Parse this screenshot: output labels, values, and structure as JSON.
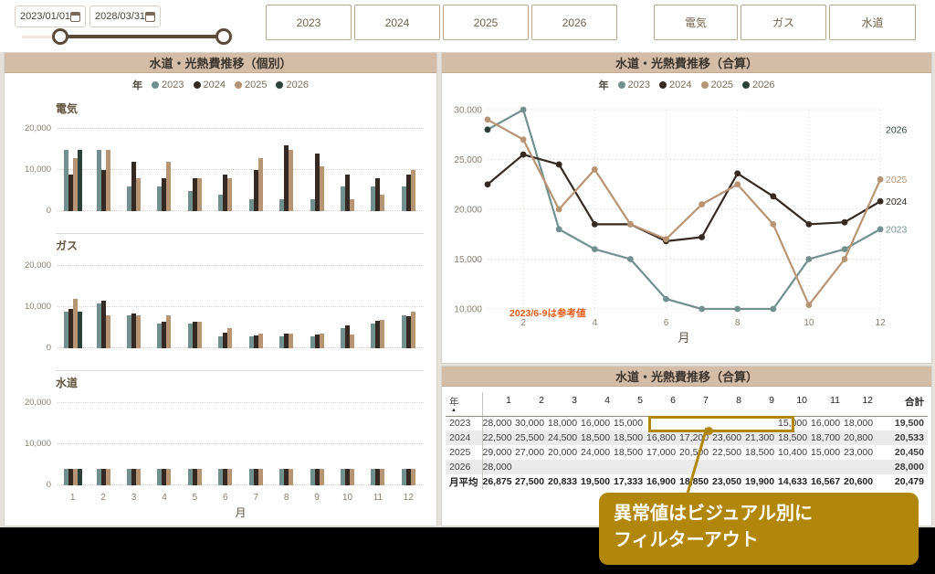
{
  "toolbar": {
    "date_from": "2023/01/01",
    "date_to": "2028/03/31",
    "year_buttons": [
      "2023",
      "2024",
      "2025",
      "2026"
    ],
    "utility_buttons": [
      "電気",
      "ガス",
      "水道"
    ]
  },
  "colors": {
    "y2023": "#72908e",
    "y2024": "#342a23",
    "y2025": "#b79473",
    "y2026": "#2e4138",
    "accent_gold": "#b1870b",
    "annotation_orange": "#e55c17",
    "header_tan": "#d5bca6"
  },
  "legend": {
    "label": "年",
    "items": [
      {
        "year": "2023",
        "color": "#72908e"
      },
      {
        "year": "2024",
        "color": "#342a23"
      },
      {
        "year": "2025",
        "color": "#b79473"
      },
      {
        "year": "2026",
        "color": "#2e4138"
      }
    ]
  },
  "left_panel": {
    "title": "水道・光熱費推移（個別）"
  },
  "line_panel": {
    "title": "水道・光熱費推移（合算）"
  },
  "table_panel": {
    "title": "水道・光熱費推移（合算）"
  },
  "callout": {
    "line1": "異常値はビジュアル別に",
    "line2": "フィルターアウト"
  },
  "chart_data": [
    {
      "type": "bar",
      "title": "電気",
      "categories": [
        1,
        2,
        3,
        4,
        5,
        6,
        7,
        8,
        9,
        10,
        11,
        12
      ],
      "ylim": [
        0,
        20000
      ],
      "yticks": [
        {
          "label": "0",
          "value": 0
        },
        {
          "label": "10,000",
          "value": 10000
        },
        {
          "label": "20,000",
          "value": 20000
        }
      ],
      "series": [
        {
          "name": "2023",
          "values": [
            15000,
            15000,
            6000,
            6000,
            5000,
            4000,
            3000,
            3000,
            3000,
            6000,
            6000,
            6000
          ]
        },
        {
          "name": "2024",
          "values": [
            9000,
            10000,
            12000,
            8000,
            8000,
            9000,
            10000,
            16000,
            14000,
            9000,
            8000,
            9000
          ]
        },
        {
          "name": "2025",
          "values": [
            13000,
            15000,
            8000,
            12000,
            8000,
            8000,
            13000,
            15000,
            11000,
            3000,
            4000,
            10000
          ]
        },
        {
          "name": "2026",
          "values": [
            15000,
            null,
            null,
            null,
            null,
            null,
            null,
            null,
            null,
            null,
            null,
            null
          ]
        }
      ]
    },
    {
      "type": "bar",
      "title": "ガス",
      "categories": [
        1,
        2,
        3,
        4,
        5,
        6,
        7,
        8,
        9,
        10,
        11,
        12
      ],
      "ylim": [
        0,
        20000
      ],
      "yticks": [
        {
          "label": "0",
          "value": 0
        },
        {
          "label": "10,000",
          "value": 10000
        },
        {
          "label": "20,000",
          "value": 20000
        }
      ],
      "series": [
        {
          "name": "2023",
          "values": [
            9000,
            11000,
            8000,
            6000,
            6000,
            3000,
            3000,
            3000,
            3000,
            5000,
            6000,
            8000
          ]
        },
        {
          "name": "2024",
          "values": [
            9500,
            11500,
            8500,
            6500,
            6500,
            3800,
            3200,
            3600,
            3300,
            5500,
            6700,
            7800
          ]
        },
        {
          "name": "2025",
          "values": [
            12000,
            8000,
            8000,
            8000,
            6500,
            5000,
            3500,
            3500,
            3500,
            3400,
            7000,
            9000
          ]
        },
        {
          "name": "2026",
          "values": [
            9000,
            null,
            null,
            null,
            null,
            null,
            null,
            null,
            null,
            null,
            null,
            null
          ]
        }
      ]
    },
    {
      "type": "bar",
      "title": "水道",
      "categories": [
        1,
        2,
        3,
        4,
        5,
        6,
        7,
        8,
        9,
        10,
        11,
        12
      ],
      "xlabel": "月",
      "ylim": [
        0,
        20000
      ],
      "yticks": [
        {
          "label": "0",
          "value": 0
        },
        {
          "label": "10,000",
          "value": 10000
        },
        {
          "label": "20,000",
          "value": 20000
        }
      ],
      "series": [
        {
          "name": "2023",
          "values": [
            4000,
            4000,
            4000,
            4000,
            4000,
            4000,
            4000,
            4000,
            4000,
            4000,
            4000,
            4000
          ]
        },
        {
          "name": "2024",
          "values": [
            4000,
            4000,
            4000,
            4000,
            4000,
            4000,
            4000,
            4000,
            4000,
            4000,
            4000,
            4000
          ]
        },
        {
          "name": "2025",
          "values": [
            4000,
            4000,
            4000,
            4000,
            4000,
            4000,
            4000,
            4000,
            4000,
            4000,
            4000,
            4000
          ]
        },
        {
          "name": "2026",
          "values": [
            4000,
            null,
            null,
            null,
            null,
            null,
            null,
            null,
            null,
            null,
            null,
            null
          ]
        }
      ]
    },
    {
      "type": "line",
      "title": "水道・光熱費推移（合算）",
      "x": [
        1,
        2,
        3,
        4,
        5,
        6,
        7,
        8,
        9,
        10,
        11,
        12
      ],
      "xticks": [
        2,
        4,
        6,
        8,
        10,
        12
      ],
      "xlabel": "月",
      "ylim": [
        10000,
        30000
      ],
      "yticks": [
        {
          "label": "10,000",
          "value": 10000
        },
        {
          "label": "15,000",
          "value": 15000
        },
        {
          "label": "20,000",
          "value": 20000
        },
        {
          "label": "25,000",
          "value": 25000
        },
        {
          "label": "30,000",
          "value": 30000
        }
      ],
      "annotation": "2023/6-9は参考値",
      "series": [
        {
          "name": "2023",
          "values": [
            28000,
            30000,
            18000,
            16000,
            15000,
            11000,
            10000,
            10000,
            10000,
            15000,
            16000,
            18000
          ]
        },
        {
          "name": "2024",
          "values": [
            22500,
            25500,
            24500,
            18500,
            18500,
            16800,
            17200,
            23600,
            21300,
            18500,
            18700,
            20800
          ]
        },
        {
          "name": "2025",
          "values": [
            29000,
            27000,
            20000,
            24000,
            18500,
            17000,
            20500,
            22500,
            18500,
            10400,
            15000,
            23000
          ]
        },
        {
          "name": "2026",
          "values": [
            28000,
            null,
            null,
            null,
            null,
            null,
            null,
            null,
            null,
            null,
            null,
            null
          ]
        }
      ]
    },
    {
      "type": "table",
      "title": "水道・光熱費推移（合算）",
      "columns": [
        "年",
        "1",
        "2",
        "3",
        "4",
        "5",
        "6",
        "7",
        "8",
        "9",
        "10",
        "11",
        "12",
        "合計"
      ],
      "rows": [
        {
          "label": "2023",
          "cells": [
            "28,000",
            "30,000",
            "18,000",
            "16,000",
            "15,000",
            "",
            "",
            "",
            "",
            "15,000",
            "16,000",
            "18,000"
          ],
          "total": "19,500"
        },
        {
          "label": "2024",
          "cells": [
            "22,500",
            "25,500",
            "24,500",
            "18,500",
            "18,500",
            "16,800",
            "17,200",
            "23,600",
            "21,300",
            "18,500",
            "18,700",
            "20,800"
          ],
          "total": "20,533"
        },
        {
          "label": "2025",
          "cells": [
            "29,000",
            "27,000",
            "20,000",
            "24,000",
            "18,500",
            "17,000",
            "20,500",
            "22,500",
            "18,500",
            "10,400",
            "15,000",
            "23,000"
          ],
          "total": "20,450"
        },
        {
          "label": "2026",
          "cells": [
            "28,000",
            "",
            "",
            "",
            "",
            "",
            "",
            "",
            "",
            "",
            "",
            ""
          ],
          "total": "28,000"
        },
        {
          "label": "月平均",
          "cells": [
            "26,875",
            "27,500",
            "20,833",
            "19,500",
            "17,333",
            "16,900",
            "18,850",
            "23,050",
            "19,900",
            "14,633",
            "16,567",
            "20,600"
          ],
          "total": "20,479",
          "bold": true
        }
      ]
    }
  ]
}
